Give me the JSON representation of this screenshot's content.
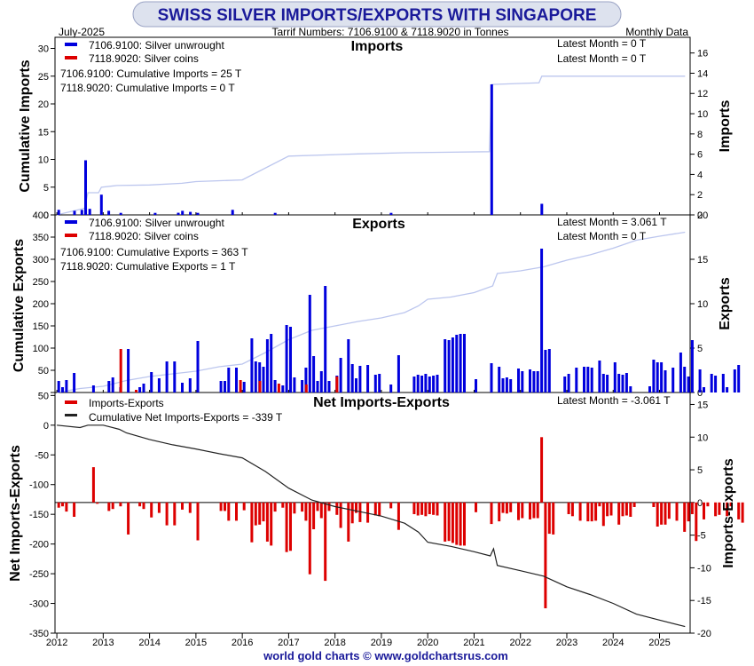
{
  "header": {
    "title": "SWISS SILVER IMPORTS/EXPORTS WITH SINGAPORE",
    "date": "July-2025",
    "tariff": "Tarrif Numbers: 7106.9100 & 7118.9020 in Tonnes",
    "frequency": "Monthly Data"
  },
  "footer": {
    "credit": "world gold charts © www.goldchartsrus.com"
  },
  "colors": {
    "title_bg": "#dde2ee",
    "title_text": "#1a1a9a",
    "blue": "#0000dd",
    "red": "#dd0000",
    "cum_line": "#bcc6ee",
    "net_line": "#222222",
    "credit": "#1a1a9a"
  },
  "chart_data": [
    {
      "type": "bar",
      "title": "Imports",
      "ylabel_left": "Cumulative Imports",
      "ylabel_right": "Imports",
      "x_ticks": [
        "2012",
        "2013",
        "2014",
        "2015",
        "2016",
        "2017",
        "2018",
        "2019",
        "2020",
        "2021",
        "2022",
        "2023",
        "2024",
        "2025"
      ],
      "x_range": [
        2011.96,
        2025.66
      ],
      "ylim_left": [
        0,
        32
      ],
      "ylim_right": [
        0,
        17.55
      ],
      "yticks_left": [
        0,
        5,
        10,
        15,
        20,
        25,
        30
      ],
      "yticks_right": [
        0,
        2,
        4,
        6,
        8,
        10,
        12,
        14,
        16
      ],
      "legend": [
        {
          "label": "7106.9100: Silver unwrought",
          "color": "#0000dd"
        },
        {
          "label": "7118.9020: Silver coins",
          "color": "#dd0000"
        }
      ],
      "annotations": [
        "7106.9100: Cumulative Imports = 25 T",
        "7118.9020: Cumulative Imports = 0 T"
      ],
      "latest": [
        "Latest Month = 0 T",
        "Latest Month = 0 T"
      ],
      "series": [
        {
          "name": "7106.9100: Silver unwrought",
          "axis": "right",
          "points": [
            [
              2012.04,
              0.5
            ],
            [
              2012.38,
              0.4
            ],
            [
              2012.54,
              0.5
            ],
            [
              2012.62,
              5.4
            ],
            [
              2012.71,
              0.6
            ],
            [
              2012.96,
              2.0
            ],
            [
              2013.12,
              0.4
            ],
            [
              2013.38,
              0.2
            ],
            [
              2014.12,
              0.2
            ],
            [
              2014.62,
              0.2
            ],
            [
              2014.62,
              0.2
            ],
            [
              2014.71,
              0.4
            ],
            [
              2014.88,
              0.3
            ],
            [
              2015.04,
              0.2
            ],
            [
              2015.79,
              0.5
            ],
            [
              2016.71,
              0.2
            ],
            [
              2019.21,
              0.2
            ],
            [
              2021.38,
              12.9
            ],
            [
              2022.46,
              1.1
            ]
          ]
        },
        {
          "name": "7118.9020: Silver coins",
          "axis": "right",
          "points": []
        }
      ],
      "cumulative": {
        "name": "Cumulative Imports",
        "axis": "left",
        "points": [
          [
            2012.0,
            0.0
          ],
          [
            2012.6,
            1.2
          ],
          [
            2012.67,
            4.0
          ],
          [
            2012.9,
            4.0
          ],
          [
            2012.96,
            5.0
          ],
          [
            2013.3,
            5.3
          ],
          [
            2014.0,
            5.4
          ],
          [
            2014.7,
            5.7
          ],
          [
            2015.0,
            6.0
          ],
          [
            2016.0,
            6.3
          ],
          [
            2017.0,
            10.6
          ],
          [
            2018.5,
            11.0
          ],
          [
            2019.5,
            11.2
          ],
          [
            2020.5,
            11.3
          ],
          [
            2021.33,
            11.4
          ],
          [
            2021.38,
            23.5
          ],
          [
            2022.4,
            23.8
          ],
          [
            2022.46,
            25.0
          ],
          [
            2025.55,
            25.0
          ]
        ]
      }
    },
    {
      "type": "bar",
      "title": "Exports",
      "ylabel_left": "Cumulative Exports",
      "ylabel_right": "Exports",
      "x_ticks": [
        "2012",
        "2013",
        "2014",
        "2015",
        "2016",
        "2017",
        "2018",
        "2019",
        "2020",
        "2021",
        "2022",
        "2023",
        "2024",
        "2025"
      ],
      "x_range": [
        2011.96,
        2025.66
      ],
      "ylim_left": [
        0,
        400
      ],
      "ylim_right": [
        0,
        20
      ],
      "yticks_left": [
        0,
        50,
        100,
        150,
        200,
        250,
        300,
        350,
        400
      ],
      "yticks_right": [
        0,
        5,
        10,
        15,
        20
      ],
      "legend": [
        {
          "label": "7106.9100: Silver unwrought",
          "color": "#0000dd"
        },
        {
          "label": "7118.9020: Silver coins",
          "color": "#dd0000"
        }
      ],
      "annotations": [
        "7106.9100: Cumulative Exports = 363 T",
        "7118.9020: Cumulative Exports = 1 T"
      ],
      "latest": [
        "Latest Month = 3.061 T",
        "Latest Month = 0 T"
      ],
      "series": [
        {
          "name": "7106.9100: Silver unwrought",
          "axis": "right",
          "values": [
            1.3,
            0.6,
            1.4,
            0.0,
            2.2,
            0.0,
            0.0,
            0.0,
            0.0,
            0.8,
            0.0,
            0.0,
            0.0,
            1.3,
            1.7,
            0.0,
            0.6,
            0.0,
            4.9,
            0.0,
            0.0,
            0.6,
            1.0,
            0.0,
            2.3,
            0.0,
            1.6,
            0.0,
            3.5,
            0.0,
            3.5,
            0.0,
            1.1,
            0.0,
            1.6,
            0.0,
            5.8,
            0.0,
            0.0,
            0.0,
            0.0,
            0.0,
            1.3,
            1.3,
            2.8,
            0.0,
            2.8,
            0.0,
            1.2,
            0.0,
            6.1,
            3.5,
            3.4,
            2.9,
            6.0,
            6.6,
            1.4,
            0.0,
            0.8,
            7.6,
            7.4,
            1.7,
            0.0,
            1.4,
            2.8,
            11.0,
            4.1,
            1.3,
            2.4,
            12.0,
            1.3,
            0.0,
            1.9,
            3.9,
            0.0,
            6.0,
            3.2,
            1.6,
            3.0,
            0.0,
            3.1,
            0.0,
            2.0,
            2.1,
            0.0,
            0.0,
            0.9,
            0.0,
            4.2,
            0.0,
            0.0,
            0.0,
            1.8,
            2.0,
            1.9,
            2.1,
            1.8,
            1.9,
            2.0,
            0.0,
            6.0,
            5.9,
            6.2,
            6.5,
            6.6,
            6.6,
            0.0,
            0.0,
            1.5,
            0.0,
            0.0,
            0.0,
            3.3,
            0.0,
            2.9,
            1.6,
            1.7,
            1.5,
            0.0,
            2.7,
            2.4,
            0.0,
            2.6,
            2.4,
            2.4,
            16.2,
            4.8,
            4.9,
            0.0,
            0.0,
            0.0,
            1.8,
            2.1,
            0.0,
            2.8,
            0.0,
            2.9,
            2.9,
            2.8,
            0.0,
            3.6,
            2.1,
            2.0,
            0.0,
            3.4,
            2.1,
            2.0,
            2.2,
            0.7,
            0.0,
            0.0,
            0.0,
            0.0,
            0.7,
            3.7,
            3.4,
            3.4,
            2.5,
            0.0,
            2.8,
            0.0,
            4.5,
            2.9,
            1.8,
            5.9,
            0.0,
            2.6,
            0.6,
            0.0,
            2.1,
            1.9,
            0.0,
            2.1,
            0.6,
            0.0,
            2.6,
            3.1
          ]
        },
        {
          "name": "7118.9020: Silver coins",
          "axis": "right",
          "points": [
            [
              2013.38,
              4.9
            ],
            [
              2013.71,
              0.3
            ],
            [
              2015.96,
              1.4
            ],
            [
              2016.38,
              1.3
            ],
            [
              2016.79,
              1.0
            ],
            [
              2017.38,
              0.9
            ],
            [
              2018.04,
              1.8
            ]
          ]
        }
      ],
      "cumulative": {
        "name": "Cumulative Exports",
        "axis": "left",
        "points": [
          [
            2012.0,
            0.0
          ],
          [
            2012.5,
            9.0
          ],
          [
            2013.0,
            14.0
          ],
          [
            2013.5,
            27.0
          ],
          [
            2014.0,
            36.0
          ],
          [
            2014.5,
            42.0
          ],
          [
            2015.0,
            48.0
          ],
          [
            2015.5,
            58.0
          ],
          [
            2016.0,
            64.0
          ],
          [
            2016.5,
            90.0
          ],
          [
            2017.0,
            119.0
          ],
          [
            2017.5,
            140.0
          ],
          [
            2018.0,
            150.0
          ],
          [
            2018.5,
            160.0
          ],
          [
            2019.0,
            168.0
          ],
          [
            2019.5,
            180.0
          ],
          [
            2019.8,
            195.0
          ],
          [
            2020.0,
            210.0
          ],
          [
            2020.5,
            215.0
          ],
          [
            2021.0,
            225.0
          ],
          [
            2021.4,
            240.0
          ],
          [
            2021.5,
            268.0
          ],
          [
            2022.0,
            274.0
          ],
          [
            2022.5,
            283.0
          ],
          [
            2023.0,
            298.0
          ],
          [
            2023.5,
            310.0
          ],
          [
            2024.0,
            325.0
          ],
          [
            2024.5,
            343.0
          ],
          [
            2025.0,
            352.0
          ],
          [
            2025.55,
            361.0
          ]
        ]
      }
    },
    {
      "type": "bar",
      "title": "Net Imports-Exports",
      "ylabel_left": "Net Imports-Exports",
      "ylabel_right": "Imports-Exports",
      "x_ticks": [
        "2012",
        "2013",
        "2014",
        "2015",
        "2016",
        "2017",
        "2018",
        "2019",
        "2020",
        "2021",
        "2022",
        "2023",
        "2024",
        "2025"
      ],
      "x_range": [
        2011.96,
        2025.66
      ],
      "ylim_left": [
        -350,
        55
      ],
      "ylim_right": [
        -20,
        16.83
      ],
      "yticks_left": [
        -350,
        -300,
        -250,
        -200,
        -150,
        -100,
        -50,
        0,
        50
      ],
      "yticks_right": [
        -20,
        -15,
        -10,
        -5,
        0,
        5,
        10,
        15
      ],
      "legend": [
        {
          "label": "Imports-Exports",
          "color": "#dd0000"
        },
        {
          "label": "Cumulative Net Imports-Exports = -339 T",
          "color": "#222222"
        }
      ],
      "latest": [
        "Latest Month = -3.061 T"
      ],
      "series": [
        {
          "name": "Imports-Exports",
          "axis": "right",
          "values": [
            -0.8,
            -0.6,
            -1.4,
            0.0,
            -2.2,
            0.0,
            0.0,
            0.0,
            0.0,
            5.4,
            -0.2,
            0.0,
            0.0,
            -1.3,
            -1.0,
            0.0,
            -0.6,
            0.0,
            -4.9,
            0.0,
            0.0,
            -0.6,
            -1.0,
            0.0,
            -2.3,
            0.0,
            -1.6,
            0.0,
            -3.5,
            0.0,
            -3.5,
            0.0,
            -1.1,
            0.0,
            -1.6,
            0.0,
            -5.8,
            0.0,
            0.0,
            0.0,
            0.0,
            0.0,
            -1.3,
            -1.3,
            -2.8,
            0.0,
            -2.8,
            0.0,
            -1.2,
            0.0,
            -6.1,
            -3.5,
            -3.4,
            -2.9,
            -6.0,
            -6.6,
            -1.4,
            0.0,
            -0.8,
            -7.6,
            -7.4,
            -1.7,
            0.0,
            -1.4,
            -2.8,
            -11.0,
            -4.1,
            -1.3,
            -2.4,
            -12.0,
            -1.3,
            0.0,
            -1.9,
            -3.9,
            0.0,
            -6.0,
            -3.2,
            -1.6,
            -3.0,
            0.0,
            -3.1,
            0.0,
            -2.0,
            -2.1,
            0.0,
            0.0,
            -0.9,
            0.0,
            -4.2,
            0.0,
            0.0,
            0.0,
            -1.8,
            -2.0,
            -1.9,
            -2.1,
            -1.8,
            -1.9,
            -2.0,
            0.0,
            -6.0,
            -5.9,
            -6.2,
            -6.5,
            -6.6,
            -6.6,
            0.0,
            0.0,
            -1.5,
            0.0,
            0.0,
            0.0,
            -3.3,
            0.0,
            -2.9,
            -1.6,
            -1.7,
            -1.5,
            0.0,
            -2.7,
            -2.4,
            0.0,
            -2.6,
            -2.4,
            -2.4,
            10.0,
            -16.2,
            -4.8,
            -4.9,
            0.0,
            0.0,
            0.0,
            -1.8,
            -2.1,
            0.0,
            -2.8,
            0.0,
            -2.9,
            -2.9,
            -2.8,
            -0.6,
            -3.6,
            -2.1,
            -2.0,
            0.0,
            -3.4,
            -2.1,
            -2.0,
            -2.2,
            -0.7,
            0.0,
            0.0,
            0.0,
            0.0,
            -0.7,
            -3.7,
            -3.4,
            -3.4,
            -2.5,
            0.0,
            -2.8,
            0.0,
            -4.5,
            -2.9,
            -1.8,
            -5.9,
            0.0,
            -2.6,
            -0.6,
            0.0,
            -2.1,
            -1.9,
            0.0,
            -2.1,
            -0.6,
            0.0,
            -2.6,
            -3.1
          ]
        }
      ],
      "cumulative": {
        "name": "Cumulative Net Imports-Exports",
        "axis": "left",
        "points": [
          [
            2012.0,
            0.0
          ],
          [
            2012.5,
            -4.0
          ],
          [
            2012.67,
            0.0
          ],
          [
            2013.0,
            0.0
          ],
          [
            2013.35,
            -7.0
          ],
          [
            2013.5,
            -13.0
          ],
          [
            2014.0,
            -24.0
          ],
          [
            2014.5,
            -33.0
          ],
          [
            2015.0,
            -40.0
          ],
          [
            2015.5,
            -48.0
          ],
          [
            2016.0,
            -55.0
          ],
          [
            2016.5,
            -78.0
          ],
          [
            2017.0,
            -106.0
          ],
          [
            2017.5,
            -126.0
          ],
          [
            2018.0,
            -137.0
          ],
          [
            2018.5,
            -145.0
          ],
          [
            2019.0,
            -153.0
          ],
          [
            2019.5,
            -165.0
          ],
          [
            2019.8,
            -180.0
          ],
          [
            2020.0,
            -197.0
          ],
          [
            2020.5,
            -204.0
          ],
          [
            2021.0,
            -213.0
          ],
          [
            2021.35,
            -220.0
          ],
          [
            2021.42,
            -208.0
          ],
          [
            2021.5,
            -236.0
          ],
          [
            2022.0,
            -245.0
          ],
          [
            2022.5,
            -254.0
          ],
          [
            2023.0,
            -272.0
          ],
          [
            2023.5,
            -285.0
          ],
          [
            2024.0,
            -300.0
          ],
          [
            2024.5,
            -318.0
          ],
          [
            2025.0,
            -328.0
          ],
          [
            2025.55,
            -339.0
          ]
        ]
      }
    }
  ]
}
